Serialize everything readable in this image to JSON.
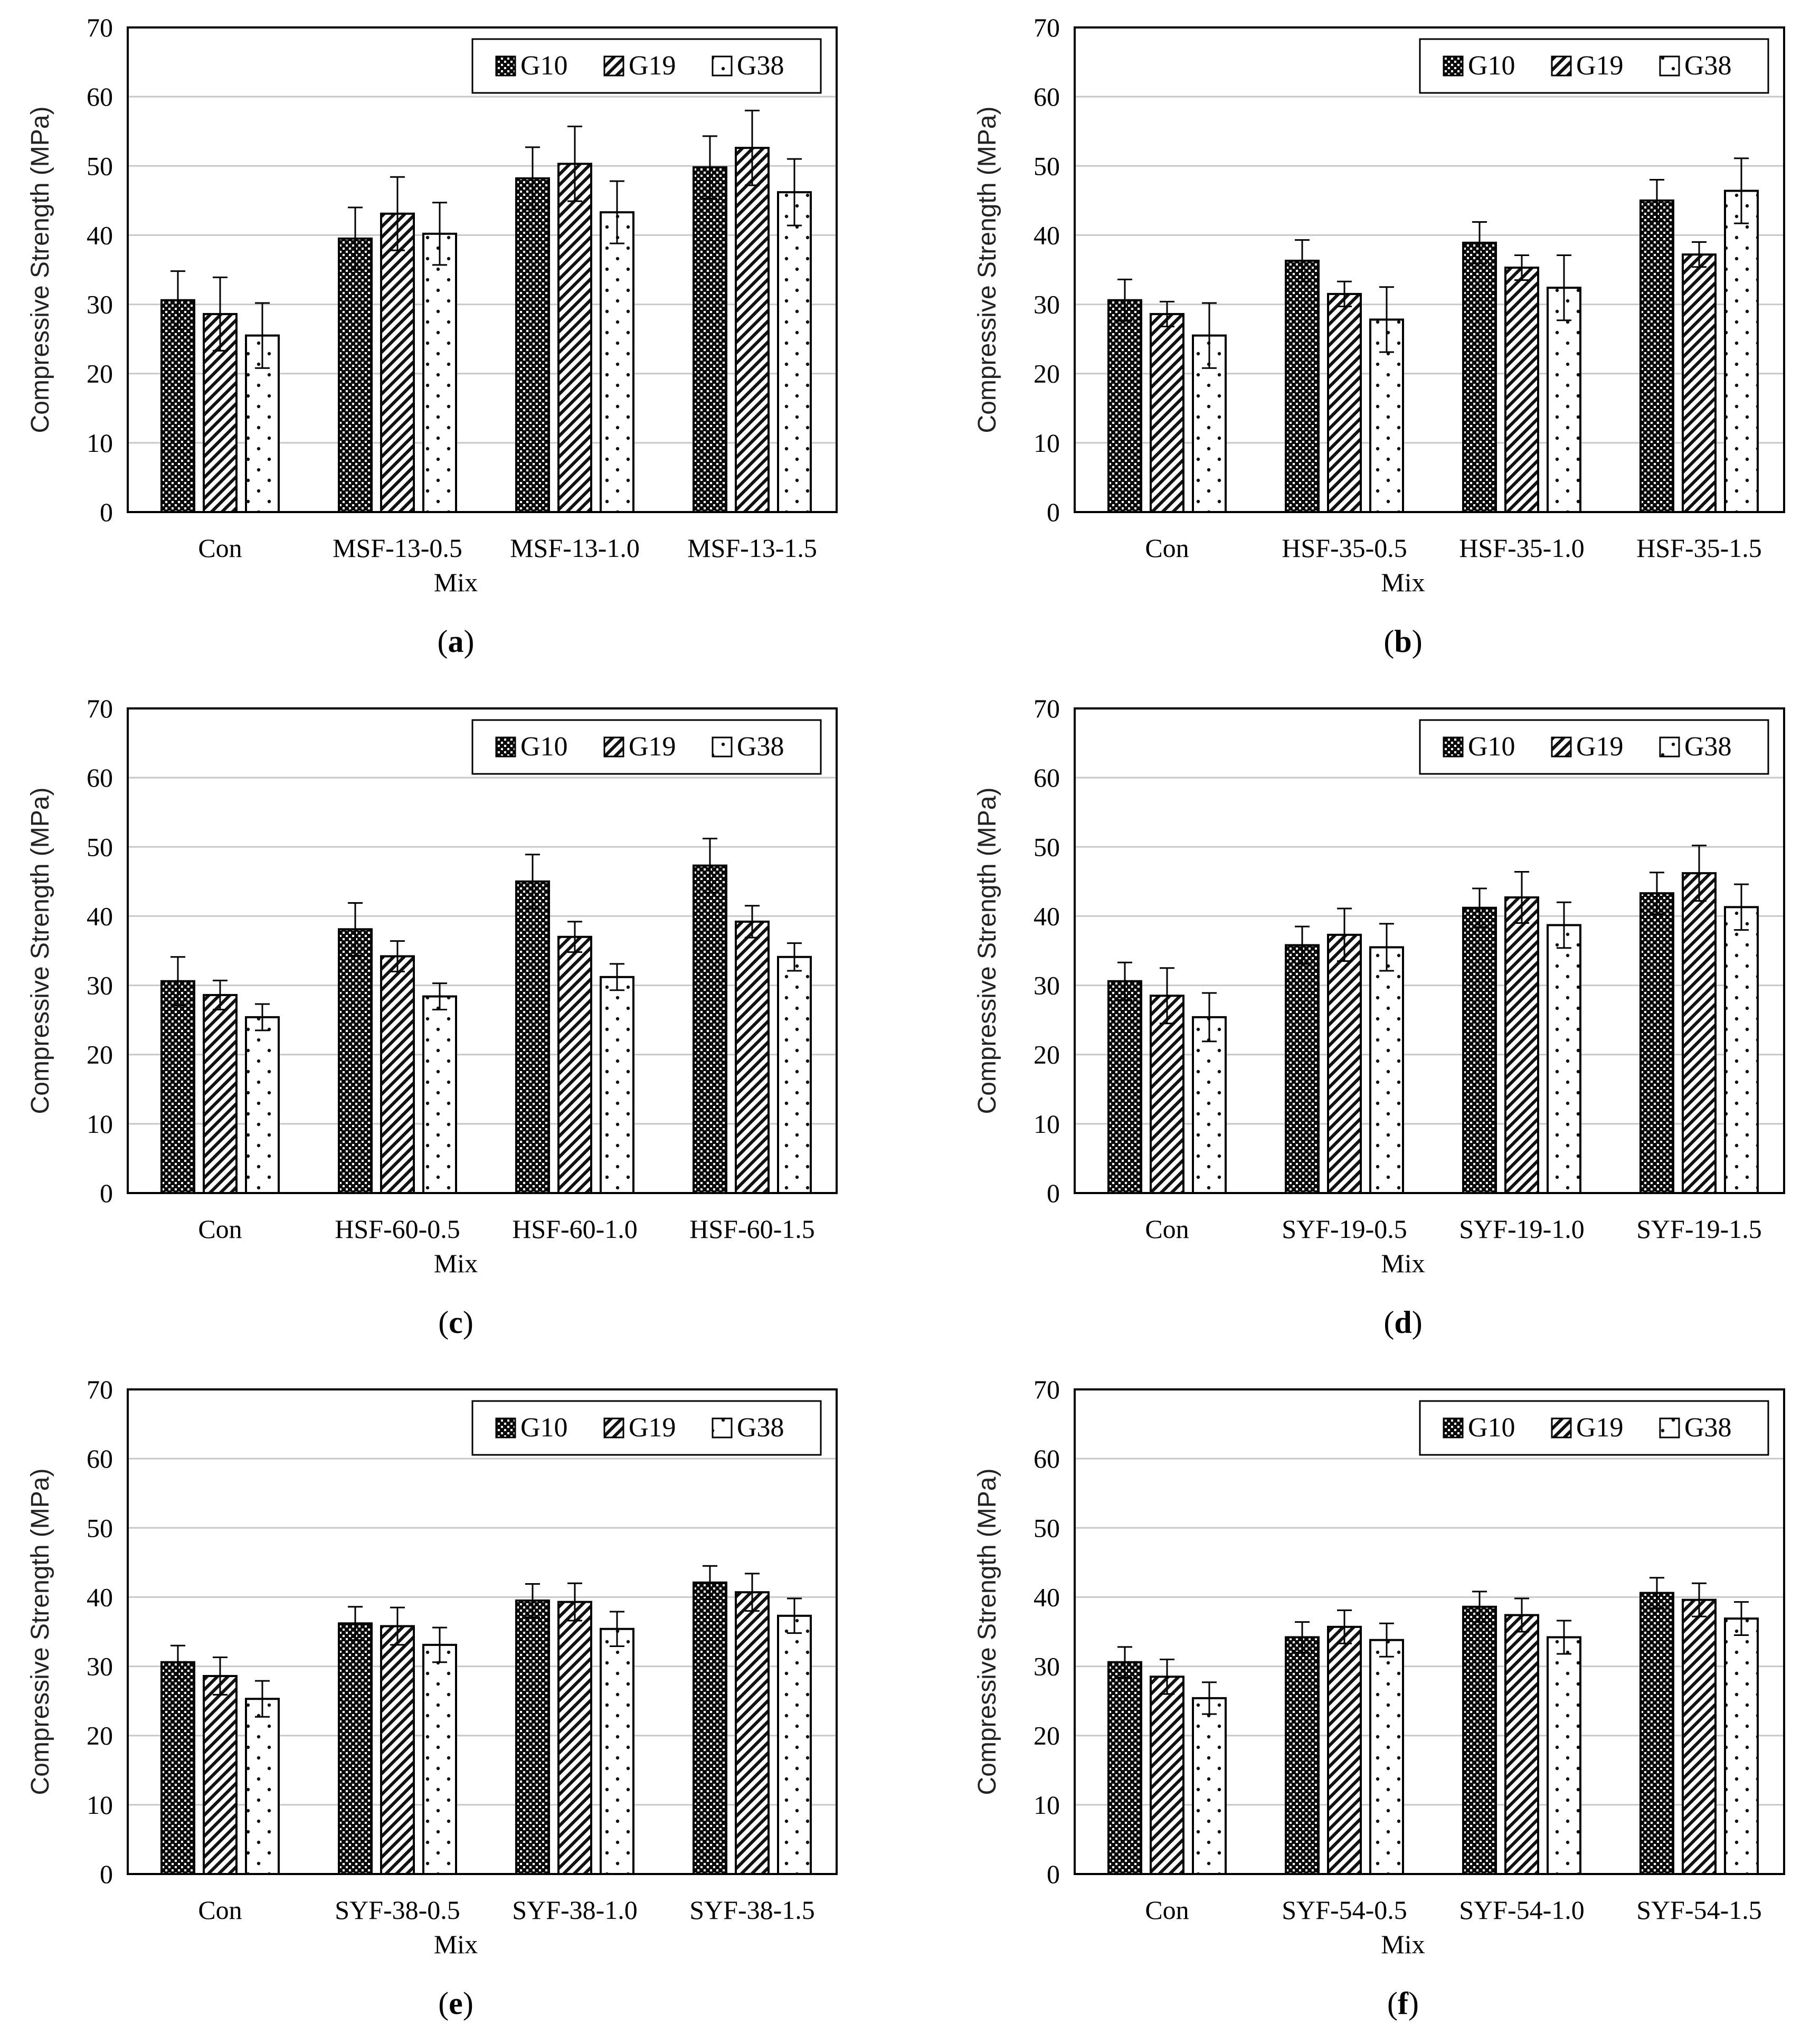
{
  "colors": {
    "frame": "#000000",
    "grid": "#c8c8c8",
    "bar_edge": "#000000",
    "background": "#ffffff"
  },
  "chart_data": [
    {
      "type": "bar",
      "label": "a",
      "categories": [
        "Con",
        "MSF-13-0.5",
        "MSF-13-1.0",
        "MSF-13-1.5"
      ],
      "series": [
        {
          "name": "G10",
          "values": [
            30.6,
            39.5,
            48.2,
            49.8
          ],
          "errors": [
            4.2,
            4.5,
            4.5,
            4.5
          ]
        },
        {
          "name": "G19",
          "values": [
            28.6,
            43.1,
            50.3,
            52.6
          ],
          "errors": [
            5.3,
            5.3,
            5.4,
            5.4
          ]
        },
        {
          "name": "G38",
          "values": [
            25.5,
            40.2,
            43.3,
            46.2
          ],
          "errors": [
            4.7,
            4.5,
            4.5,
            4.8
          ]
        }
      ],
      "xlabel": "Mix",
      "ylabel": "Compressive Strength (MPa)",
      "ylim": [
        0,
        70
      ],
      "yticks": [
        0,
        10,
        20,
        30,
        40,
        50,
        60,
        70
      ],
      "grid": true,
      "legend": "top-right"
    },
    {
      "type": "bar",
      "label": "b",
      "categories": [
        "Con",
        "HSF-35-0.5",
        "HSF-35-1.0",
        "HSF-35-1.5"
      ],
      "series": [
        {
          "name": "G10",
          "values": [
            30.6,
            36.3,
            38.9,
            45.0
          ],
          "errors": [
            3.0,
            3.0,
            3.0,
            3.0
          ]
        },
        {
          "name": "G19",
          "values": [
            28.6,
            31.5,
            35.3,
            37.2
          ],
          "errors": [
            1.8,
            1.8,
            1.8,
            1.8
          ]
        },
        {
          "name": "G38",
          "values": [
            25.5,
            27.8,
            32.4,
            46.4
          ],
          "errors": [
            4.7,
            4.7,
            4.7,
            4.7
          ]
        }
      ],
      "xlabel": "Mix",
      "ylabel": "Compressive Strength (MPa)",
      "ylim": [
        0,
        70
      ],
      "yticks": [
        0,
        10,
        20,
        30,
        40,
        50,
        60,
        70
      ],
      "grid": true,
      "legend": "top-right"
    },
    {
      "type": "bar",
      "label": "c",
      "categories": [
        "Con",
        "HSF-60-0.5",
        "HSF-60-1.0",
        "HSF-60-1.5"
      ],
      "series": [
        {
          "name": "G10",
          "values": [
            30.6,
            38.1,
            45.0,
            47.3
          ],
          "errors": [
            3.5,
            3.8,
            3.9,
            3.9
          ]
        },
        {
          "name": "G19",
          "values": [
            28.6,
            34.2,
            37.0,
            39.2
          ],
          "errors": [
            2.1,
            2.2,
            2.2,
            2.3
          ]
        },
        {
          "name": "G38",
          "values": [
            25.4,
            28.4,
            31.2,
            34.1
          ],
          "errors": [
            1.9,
            1.9,
            1.9,
            2.0
          ]
        }
      ],
      "xlabel": "Mix",
      "ylabel": "Compressive Strength (MPa)",
      "ylim": [
        0,
        70
      ],
      "yticks": [
        0,
        10,
        20,
        30,
        40,
        50,
        60,
        70
      ],
      "grid": true,
      "legend": "top-right"
    },
    {
      "type": "bar",
      "label": "d",
      "categories": [
        "Con",
        "SYF-19-0.5",
        "SYF-19-1.0",
        "SYF-19-1.5"
      ],
      "series": [
        {
          "name": "G10",
          "values": [
            30.6,
            35.8,
            41.2,
            43.3
          ],
          "errors": [
            2.7,
            2.7,
            2.8,
            3.0
          ]
        },
        {
          "name": "G19",
          "values": [
            28.5,
            37.3,
            42.7,
            46.2
          ],
          "errors": [
            4.0,
            3.8,
            3.7,
            4.0
          ]
        },
        {
          "name": "G38",
          "values": [
            25.4,
            35.5,
            38.7,
            41.3
          ],
          "errors": [
            3.5,
            3.4,
            3.3,
            3.3
          ]
        }
      ],
      "xlabel": "Mix",
      "ylabel": "Compressive Strength (MPa)",
      "ylim": [
        0,
        70
      ],
      "yticks": [
        0,
        10,
        20,
        30,
        40,
        50,
        60,
        70
      ],
      "grid": true,
      "legend": "top-right"
    },
    {
      "type": "bar",
      "label": "e",
      "categories": [
        "Con",
        "SYF-38-0.5",
        "SYF-38-1.0",
        "SYF-38-1.5"
      ],
      "series": [
        {
          "name": "G10",
          "values": [
            30.6,
            36.2,
            39.5,
            42.1
          ],
          "errors": [
            2.4,
            2.4,
            2.4,
            2.4
          ]
        },
        {
          "name": "G19",
          "values": [
            28.6,
            35.8,
            39.3,
            40.7
          ],
          "errors": [
            2.7,
            2.7,
            2.7,
            2.7
          ]
        },
        {
          "name": "G38",
          "values": [
            25.3,
            33.1,
            35.4,
            37.3
          ],
          "errors": [
            2.6,
            2.5,
            2.5,
            2.5
          ]
        }
      ],
      "xlabel": "Mix",
      "ylabel": "Compressive Strength (MPa)",
      "ylim": [
        0,
        70
      ],
      "yticks": [
        0,
        10,
        20,
        30,
        40,
        50,
        60,
        70
      ],
      "grid": true,
      "legend": "top-right"
    },
    {
      "type": "bar",
      "label": "f",
      "categories": [
        "Con",
        "SYF-54-0.5",
        "SYF-54-1.0",
        "SYF-54-1.5"
      ],
      "series": [
        {
          "name": "G10",
          "values": [
            30.6,
            34.2,
            38.6,
            40.6
          ],
          "errors": [
            2.2,
            2.2,
            2.2,
            2.2
          ]
        },
        {
          "name": "G19",
          "values": [
            28.5,
            35.7,
            37.4,
            39.6
          ],
          "errors": [
            2.5,
            2.4,
            2.4,
            2.4
          ]
        },
        {
          "name": "G38",
          "values": [
            25.4,
            33.8,
            34.2,
            36.9
          ],
          "errors": [
            2.3,
            2.4,
            2.4,
            2.4
          ]
        }
      ],
      "xlabel": "Mix",
      "ylabel": "Compressive Strength (MPa)",
      "ylim": [
        0,
        70
      ],
      "yticks": [
        0,
        10,
        20,
        30,
        40,
        50,
        60,
        70
      ],
      "grid": true,
      "legend": "top-right"
    }
  ]
}
